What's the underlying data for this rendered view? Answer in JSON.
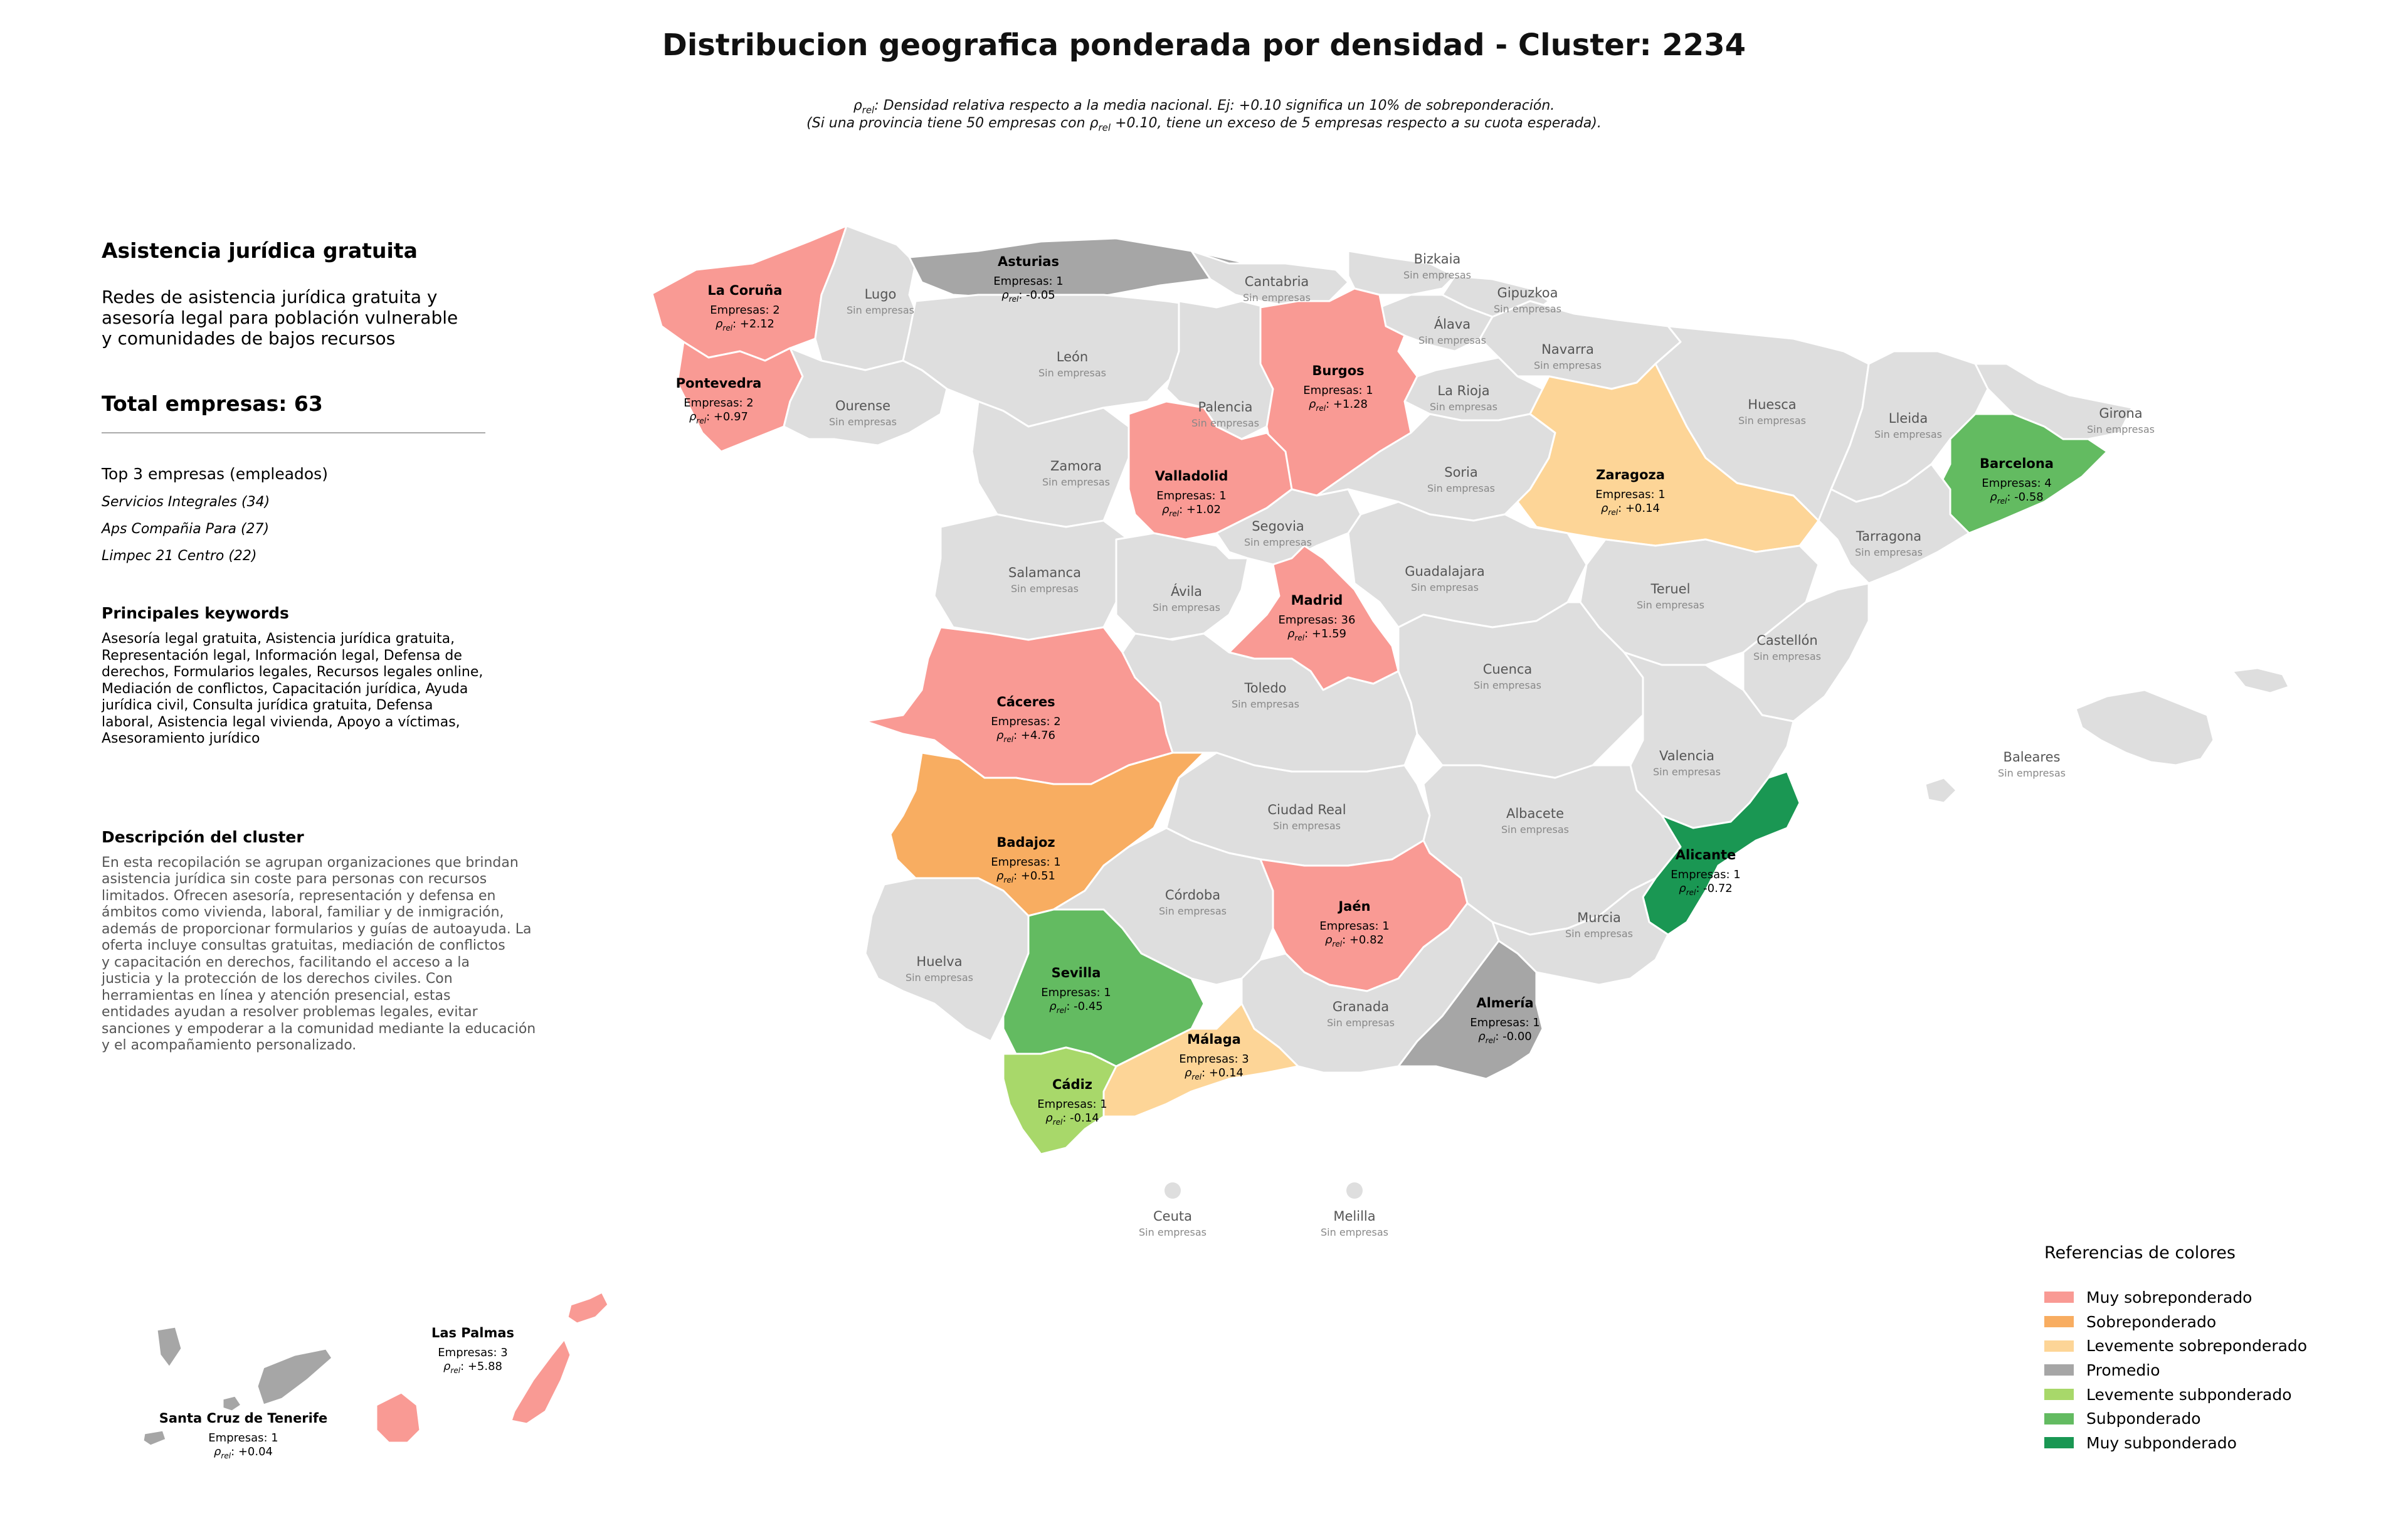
{
  "title": "Distribucion geografica ponderada por densidad - Cluster: 2234",
  "subtitle": {
    "rho_symbol": "ρ",
    "rho_sub": "rel",
    "line1_rest": ": Densidad relativa respecto a la media nacional. Ej: +0.10 significa un 10% de sobreponderación.",
    "line2_before": "(Si una provincia tiene 50 empresas con ",
    "line2_after": " +0.10, tiene un exceso de 5 empresas respecto a su cuota esperada)."
  },
  "cluster": {
    "heading": "Asistencia jurídica gratuita",
    "description": [
      "Redes de asistencia jurídica gratuita y",
      "asesoría legal para población vulnerable",
      "y comunidades de bajos recursos"
    ],
    "total": "Total empresas: 63",
    "top_title": "Top 3 empresas (empleados)",
    "top": [
      "Servicios Integrales (34)",
      "Aps Compañia Para (27)",
      "Limpec 21 Centro (22)"
    ],
    "keywords_title": "Principales keywords",
    "keywords": [
      "Asesoría legal gratuita, Asistencia jurídica gratuita,",
      "Representación legal, Información legal, Defensa de",
      "derechos, Formularios legales, Recursos legales online,",
      "Mediación de conflictos, Capacitación jurídica, Ayuda",
      "jurídica civil, Consulta jurídica gratuita, Defensa",
      "laboral, Asistencia legal vivienda, Apoyo a víctimas,",
      "Asesoramiento jurídico"
    ],
    "desc_title": "Descripción del cluster",
    "desc_text": [
      "En esta recopilación se agrupan organizaciones que brindan",
      "asistencia jurídica sin coste para personas con recursos",
      "limitados. Ofrecen asesoría, representación y defensa en",
      "ámbitos como vivienda, laboral, familiar y de inmigración,",
      "además de proporcionar formularios y guías de autoayuda. La",
      "oferta incluye consultas gratuitas, mediación de conflictos",
      "y capacitación en derechos, facilitando el acceso a la",
      "justicia y la protección de los derechos civiles. Con",
      "herramientas en línea y atención presencial, estas",
      "entidades ayudan a resolver problemas legales, evitar",
      "sanciones y empoderar a la comunidad mediante la educación",
      "y el acompañamiento personalizado."
    ]
  },
  "legend": {
    "title": "Referencias de colores",
    "items": [
      {
        "label": "Muy sobreponderado",
        "color": "#f99a94"
      },
      {
        "label": "Sobreponderado",
        "color": "#f8ad61"
      },
      {
        "label": "Levemente sobreponderado",
        "color": "#fdd597"
      },
      {
        "label": "Promedio",
        "color": "#a6a6a6"
      },
      {
        "label": "Levemente subponderado",
        "color": "#a8d86a"
      },
      {
        "label": "Subponderado",
        "color": "#63bb61"
      },
      {
        "label": "Muy subponderado",
        "color": "#1a9753"
      }
    ]
  },
  "empty_color": "#dedede",
  "labels": {
    "empresas_prefix": "Empresas: ",
    "rho": "ρ",
    "rho_sub": "rel",
    "no_companies": "Sin empresas"
  },
  "provinces": [
    {
      "name": "La Coruña",
      "empresas": "2",
      "rho": "+2.12",
      "category": 0
    },
    {
      "name": "Asturias",
      "empresas": "1",
      "rho": "-0.05",
      "category": 3
    },
    {
      "name": "Pontevedra",
      "empresas": "2",
      "rho": "+0.97",
      "category": 0
    },
    {
      "name": "Burgos",
      "empresas": "1",
      "rho": "+1.28",
      "category": 0
    },
    {
      "name": "Valladolid",
      "empresas": "1",
      "rho": "+1.02",
      "category": 0
    },
    {
      "name": "Zaragoza",
      "empresas": "1",
      "rho": "+0.14",
      "category": 2
    },
    {
      "name": "Barcelona",
      "empresas": "4",
      "rho": "-0.58",
      "category": 5
    },
    {
      "name": "Madrid",
      "empresas": "36",
      "rho": "+1.59",
      "category": 0
    },
    {
      "name": "Cáceres",
      "empresas": "2",
      "rho": "+4.76",
      "category": 0
    },
    {
      "name": "Badajoz",
      "empresas": "1",
      "rho": "+0.51",
      "category": 1
    },
    {
      "name": "Alicante",
      "empresas": "1",
      "rho": "-0.72",
      "category": 6
    },
    {
      "name": "Jaén",
      "empresas": "1",
      "rho": "+0.82",
      "category": 0
    },
    {
      "name": "Sevilla",
      "empresas": "1",
      "rho": "-0.45",
      "category": 5
    },
    {
      "name": "Almería",
      "empresas": "1",
      "rho": "-0.00",
      "category": 3
    },
    {
      "name": "Málaga",
      "empresas": "3",
      "rho": "+0.14",
      "category": 2
    },
    {
      "name": "Cádiz",
      "empresas": "1",
      "rho": "-0.14",
      "category": 4
    },
    {
      "name": "Las Palmas",
      "empresas": "3",
      "rho": "+5.88",
      "category": 0
    },
    {
      "name": "Santa Cruz de Tenerife",
      "empresas": "1",
      "rho": "+0.04",
      "category": 3
    }
  ],
  "empty_provinces": [
    "Lugo",
    "Cantabria",
    "Bizkaia",
    "Gipuzkoa",
    "Álava",
    "León",
    "Navarra",
    "Ourense",
    "Palencia",
    "La Rioja",
    "Huesca",
    "Lleida",
    "Girona",
    "Zamora",
    "Soria",
    "Segovia",
    "Tarragona",
    "Salamanca",
    "Ávila",
    "Guadalajara",
    "Teruel",
    "Castellón",
    "Cuenca",
    "Toledo",
    "Valencia",
    "Baleares",
    "Ciudad Real",
    "Albacete",
    "Córdoba",
    "Murcia",
    "Huelva",
    "Granada",
    "Ceuta",
    "Melilla"
  ]
}
